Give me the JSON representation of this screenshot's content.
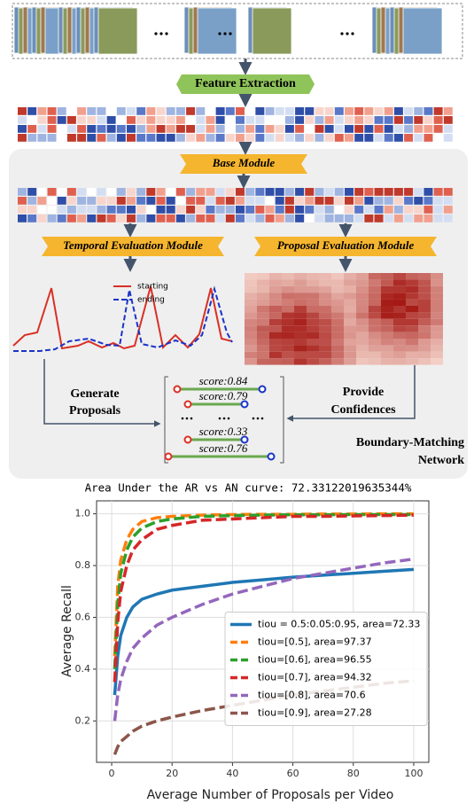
{
  "diagram": {
    "feature_extraction": "Feature Extraction",
    "base_module": "Base Module",
    "temporal_module": "Temporal Evaluation Module",
    "proposal_module": "Proposal Evaluation Module",
    "plot_legend": [
      "starting",
      "ending"
    ],
    "generate": [
      "Generate",
      "Proposals"
    ],
    "provide": [
      "Provide",
      "Confidences"
    ],
    "scores": [
      "score:0.84",
      "score:0.79",
      "score:0.33",
      "score:0.76"
    ],
    "network": [
      "Boundary-Matching",
      "Network"
    ]
  },
  "chart_data": {
    "type": "line",
    "title": "Area Under the AR vs AN curve: 72.33122019635344%",
    "x_label": "Average Number of Proposals per Video",
    "y_label": "Average Recall",
    "x": [
      1,
      2,
      3,
      5,
      7,
      10,
      15,
      20,
      30,
      40,
      50,
      60,
      70,
      80,
      90,
      100
    ],
    "series": [
      {
        "name": "tiou = 0.5:0.05:0.95, area=72.33",
        "color": "#1f77b4",
        "dashed": false,
        "values": [
          0.3,
          0.45,
          0.53,
          0.6,
          0.64,
          0.67,
          0.69,
          0.705,
          0.72,
          0.735,
          0.745,
          0.755,
          0.763,
          0.77,
          0.778,
          0.785
        ]
      },
      {
        "name": "tiou=[0.5], area=97.37",
        "color": "#ff7f0e",
        "dashed": true,
        "values": [
          0.45,
          0.72,
          0.82,
          0.9,
          0.94,
          0.97,
          0.985,
          0.99,
          0.995,
          0.997,
          0.998,
          0.998,
          0.999,
          0.999,
          1,
          1
        ]
      },
      {
        "name": "tiou=[0.6], area=96.55",
        "color": "#2ca02c",
        "dashed": true,
        "values": [
          0.4,
          0.65,
          0.77,
          0.86,
          0.91,
          0.945,
          0.97,
          0.98,
          0.99,
          0.993,
          0.995,
          0.996,
          0.996,
          0.997,
          0.997,
          0.997
        ]
      },
      {
        "name": "tiou=[0.7], area=94.32",
        "color": "#d62728",
        "dashed": true,
        "values": [
          0.35,
          0.58,
          0.7,
          0.8,
          0.86,
          0.9,
          0.94,
          0.955,
          0.975,
          0.98,
          0.985,
          0.99,
          0.99,
          0.992,
          0.993,
          0.995
        ]
      },
      {
        "name": "tiou=[0.8], area=70.6",
        "color": "#9467bd",
        "dashed": true,
        "values": [
          0.2,
          0.3,
          0.36,
          0.43,
          0.48,
          0.52,
          0.57,
          0.6,
          0.65,
          0.69,
          0.72,
          0.75,
          0.77,
          0.79,
          0.81,
          0.825
        ]
      },
      {
        "name": "tiou=[0.9], area=27.28",
        "color": "#8c564b",
        "dashed": true,
        "values": [
          0.07,
          0.1,
          0.12,
          0.14,
          0.16,
          0.18,
          0.2,
          0.215,
          0.24,
          0.26,
          0.28,
          0.3,
          0.315,
          0.33,
          0.345,
          0.355
        ]
      }
    ],
    "xlim": [
      -5,
      105
    ],
    "xticks": [
      0,
      20,
      40,
      60,
      80,
      100
    ],
    "ylim": [
      0.04,
      1.05
    ],
    "yticks": [
      0.2,
      0.4,
      0.6,
      0.8,
      {
        "value": 1,
        "label": "1.0"
      }
    ],
    "grid": true,
    "legend": "center right"
  }
}
